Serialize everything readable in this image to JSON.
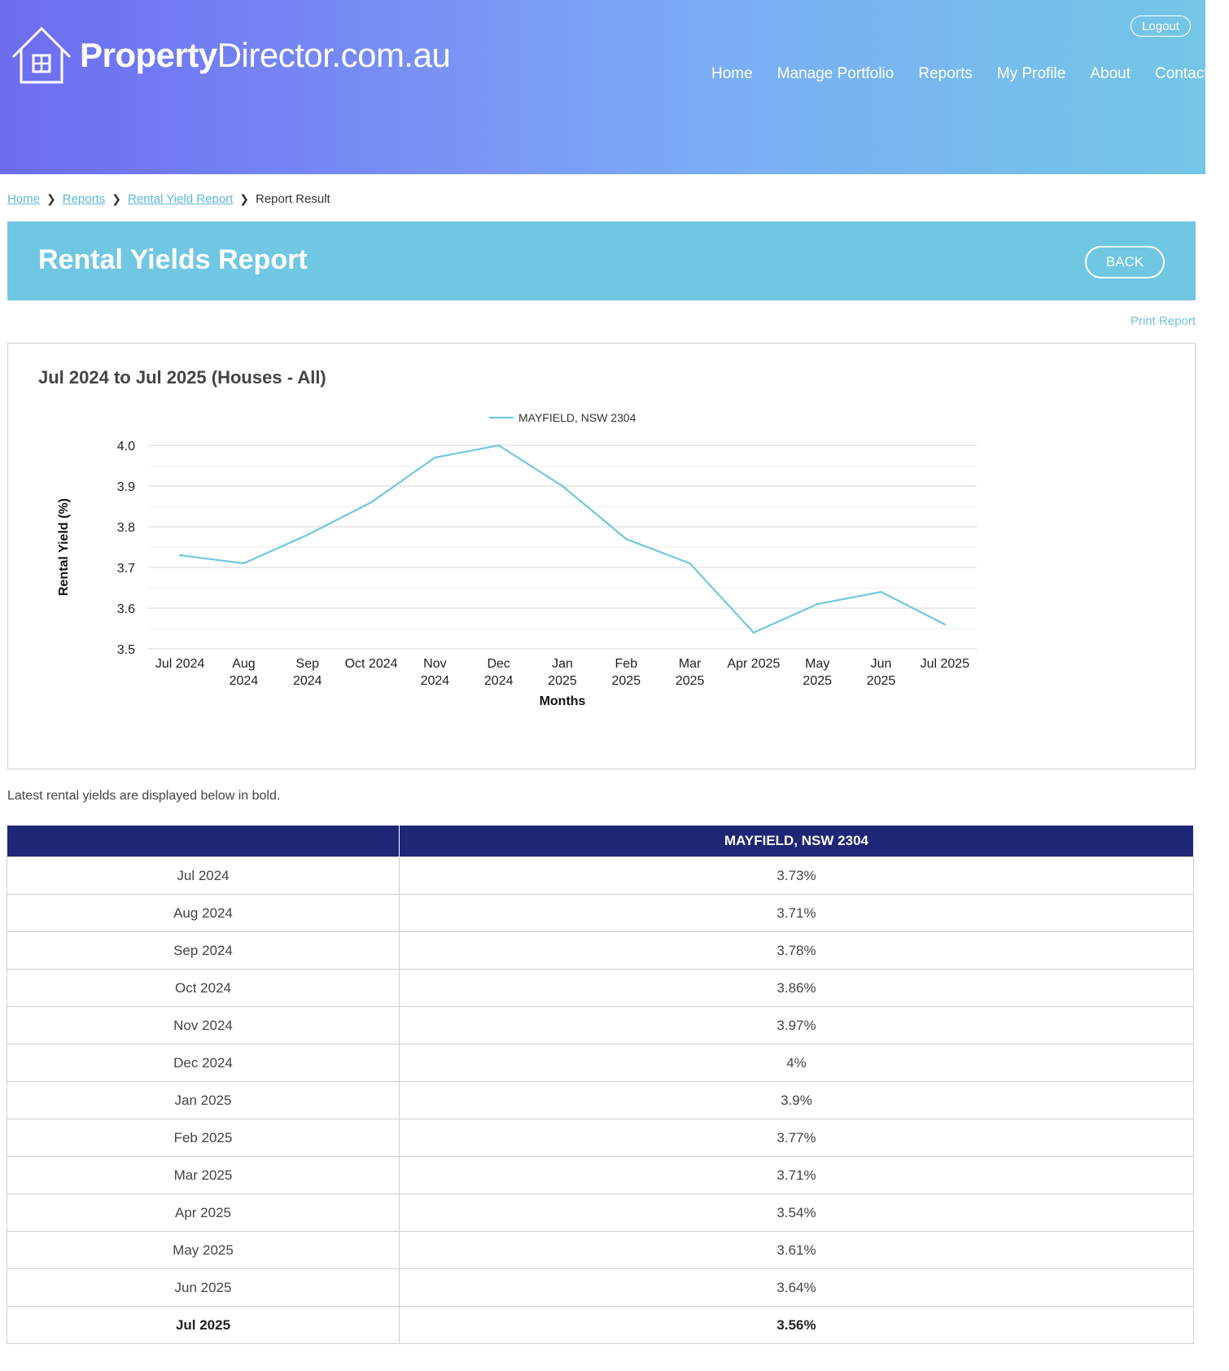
{
  "header": {
    "logo_bold": "Property",
    "logo_rest": "Director.com.au",
    "logout": "Logout",
    "nav": [
      "Home",
      "Manage Portfolio",
      "Reports",
      "My Profile",
      "About",
      "Contact"
    ]
  },
  "breadcrumb": {
    "items": [
      "Home",
      "Reports",
      "Rental Yield Report"
    ],
    "current": "Report Result"
  },
  "page": {
    "title": "Rental Yields Report",
    "back": "BACK",
    "print": "Print Report",
    "note": "Latest rental yields are displayed below in bold."
  },
  "colors": {
    "header_start": "#6d6cf0",
    "header_end": "#74c6e6",
    "title_bar": "#70c7e2",
    "table_header": "#1e2675",
    "series_line": "#6fc8de"
  },
  "chart_data": {
    "type": "line",
    "title": "Jul 2024 to Jul 2025 (Houses - All)",
    "xlabel": "Months",
    "ylabel": "Rental Yield (%)",
    "ylim": [
      3.5,
      4.0
    ],
    "yticks": [
      "4.0",
      "3.9",
      "3.8",
      "3.7",
      "3.6",
      "3.5"
    ],
    "legend_position": "top-center",
    "grid": true,
    "categories": [
      [
        "Jul 2024"
      ],
      [
        "Aug",
        "2024"
      ],
      [
        "Sep",
        "2024"
      ],
      [
        "Oct 2024"
      ],
      [
        "Nov",
        "2024"
      ],
      [
        "Dec",
        "2024"
      ],
      [
        "Jan",
        "2025"
      ],
      [
        "Feb",
        "2025"
      ],
      [
        "Mar",
        "2025"
      ],
      [
        "Apr 2025"
      ],
      [
        "May",
        "2025"
      ],
      [
        "Jun",
        "2025"
      ],
      [
        "Jul 2025"
      ]
    ],
    "series": [
      {
        "name": "MAYFIELD, NSW 2304",
        "values": [
          3.73,
          3.71,
          3.78,
          3.86,
          3.97,
          4.0,
          3.9,
          3.77,
          3.71,
          3.54,
          3.61,
          3.64,
          3.56
        ]
      }
    ]
  },
  "table": {
    "headers": [
      "",
      "MAYFIELD, NSW 2304"
    ],
    "rows": [
      [
        "Jul 2024",
        "3.73%"
      ],
      [
        "Aug 2024",
        "3.71%"
      ],
      [
        "Sep 2024",
        "3.78%"
      ],
      [
        "Oct 2024",
        "3.86%"
      ],
      [
        "Nov 2024",
        "3.97%"
      ],
      [
        "Dec 2024",
        "4%"
      ],
      [
        "Jan 2025",
        "3.9%"
      ],
      [
        "Feb 2025",
        "3.77%"
      ],
      [
        "Mar 2025",
        "3.71%"
      ],
      [
        "Apr 2025",
        "3.54%"
      ],
      [
        "May 2025",
        "3.61%"
      ],
      [
        "Jun 2025",
        "3.64%"
      ],
      [
        "Jul 2025",
        "3.56%"
      ]
    ],
    "latest_index": 12
  }
}
